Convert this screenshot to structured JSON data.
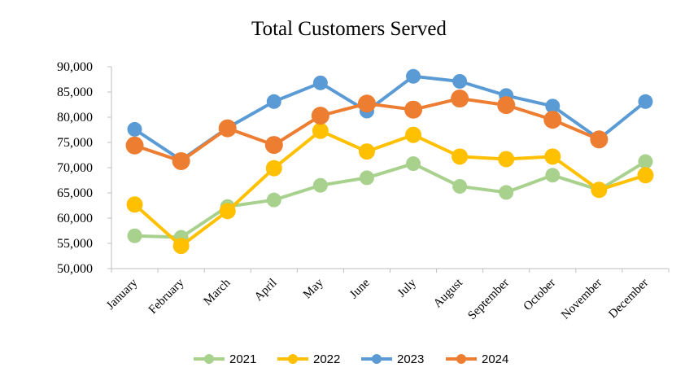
{
  "chart_data": {
    "type": "line",
    "title": "Total Customers Served",
    "xlabel": "",
    "ylabel": "",
    "ylim": [
      50000,
      90000
    ],
    "yticks": [
      50000,
      55000,
      60000,
      65000,
      70000,
      75000,
      80000,
      85000,
      90000
    ],
    "ytick_labels": [
      "50,000",
      "55,000",
      "60,000",
      "65,000",
      "70,000",
      "75,000",
      "80,000",
      "85,000",
      "90,000"
    ],
    "categories": [
      "January",
      "February",
      "March",
      "April",
      "May",
      "June",
      "July",
      "August",
      "September",
      "October",
      "November",
      "December"
    ],
    "grid": false,
    "legend_position": "bottom",
    "series": [
      {
        "name": "2021",
        "color": "#A9D18E",
        "values": [
          56500,
          56200,
          62300,
          63600,
          66500,
          68000,
          70800,
          66300,
          65100,
          68500,
          65600,
          71200
        ]
      },
      {
        "name": "2022",
        "color": "#FFC000",
        "values": [
          62700,
          54500,
          61400,
          69900,
          77300,
          73200,
          76500,
          72200,
          71700,
          72200,
          65600,
          68500
        ]
      },
      {
        "name": "2023",
        "color": "#5B9BD5",
        "values": [
          77600,
          71500,
          77900,
          83100,
          86800,
          81200,
          88100,
          87100,
          84300,
          82200,
          75700,
          83100
        ]
      },
      {
        "name": "2024",
        "color": "#ED7D31",
        "values": [
          74400,
          71300,
          77800,
          74500,
          80300,
          82700,
          81500,
          83700,
          82400,
          79500,
          75600,
          null
        ]
      }
    ]
  }
}
